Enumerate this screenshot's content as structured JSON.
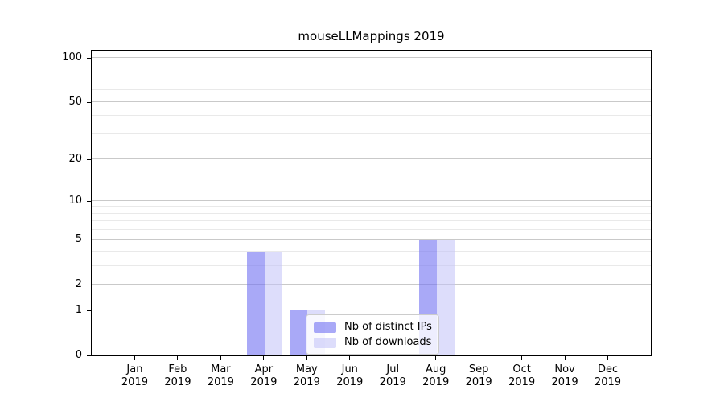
{
  "chart_data": {
    "type": "bar",
    "title": "mouseLLMappings 2019",
    "categories": [
      "Jan",
      "Feb",
      "Mar",
      "Apr",
      "May",
      "Jun",
      "Jul",
      "Aug",
      "Sep",
      "Oct",
      "Nov",
      "Dec"
    ],
    "x_sublabel": "2019",
    "series": [
      {
        "key": "distinct_ips",
        "name": "Nb of distinct IPs",
        "color": "rgba(116,116,242,0.62)",
        "color_over_white": "#a9a9f7",
        "values": [
          0,
          0,
          0,
          4,
          1,
          0,
          0,
          5,
          0,
          0,
          0,
          0
        ]
      },
      {
        "key": "downloads",
        "name": "Nb of downloads",
        "color": "rgba(193,193,248,0.55)",
        "color_over_white": "#ddddfb",
        "values": [
          0,
          0,
          0,
          4,
          1,
          0,
          0,
          5,
          0,
          0,
          0,
          0
        ]
      }
    ],
    "yscale": "log1p",
    "ymax": 112,
    "y_ticks_major": [
      0,
      1,
      2,
      5,
      10,
      20,
      50,
      100
    ],
    "y_tick_labels": [
      "0",
      "1",
      "2",
      "5",
      "10",
      "20",
      "50",
      "100"
    ],
    "y_ticks_minor": [
      3,
      4,
      6,
      7,
      8,
      9,
      30,
      40,
      60,
      70,
      80,
      90
    ],
    "grid": "on",
    "legend": {
      "position": "lower-center",
      "entries": [
        "Nb of distinct IPs",
        "Nb of downloads"
      ]
    },
    "colors": {
      "background": "#ffffff",
      "spine": "#000000",
      "gridline_major": "#c9c9c9",
      "gridline_minor": "#e9e9e9",
      "text": "#000000"
    }
  }
}
